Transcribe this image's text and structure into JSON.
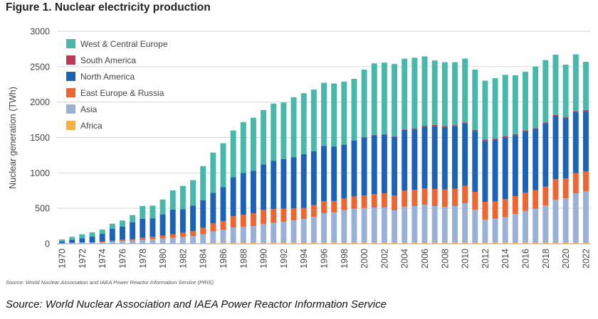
{
  "figure_title": "Figure 1. Nuclear electricity production",
  "small_source": "Source: World Nuclear Association and IAEA Power Reactor Information Service (PRIS)",
  "big_source": "Source: World Nuclear Association and IAEA Power Reactor Information Service",
  "chart_data": {
    "type": "bar",
    "stacked": true,
    "title": "",
    "xlabel": "",
    "ylabel": "Nuclear generation (TWh)",
    "ylim": [
      0,
      3000
    ],
    "yticks": [
      "0",
      "500",
      "1000",
      "1500",
      "2000",
      "2500",
      "3000"
    ],
    "grid": "horizontal",
    "legend_position": "top-left",
    "legend_order": [
      "West & Central Europe",
      "South America",
      "North America",
      "East Europe & Russia",
      "Asia",
      "Africa"
    ],
    "categories": [
      "1970",
      "1971",
      "1972",
      "1973",
      "1974",
      "1975",
      "1976",
      "1977",
      "1978",
      "1979",
      "1980",
      "1981",
      "1982",
      "1983",
      "1984",
      "1985",
      "1986",
      "1987",
      "1988",
      "1989",
      "1990",
      "1991",
      "1992",
      "1993",
      "1994",
      "1995",
      "1996",
      "1997",
      "1998",
      "1999",
      "2000",
      "2001",
      "2002",
      "2003",
      "2004",
      "2005",
      "2006",
      "2007",
      "2008",
      "2009",
      "2010",
      "2011",
      "2012",
      "2013",
      "2014",
      "2015",
      "2016",
      "2017",
      "2018",
      "2019",
      "2020",
      "2021",
      "2022"
    ],
    "x_tick_labels": [
      "1970",
      "1972",
      "1974",
      "1976",
      "1978",
      "1980",
      "1982",
      "1984",
      "1986",
      "1988",
      "1990",
      "1992",
      "1994",
      "1996",
      "1998",
      "2000",
      "2002",
      "2004",
      "2006",
      "2008",
      "2010",
      "2012",
      "2014",
      "2016",
      "2018",
      "2020",
      "2022"
    ],
    "series": [
      {
        "name": "Africa",
        "color": "#f9b042",
        "values": [
          0,
          0,
          0,
          0,
          0,
          0,
          0,
          0,
          0,
          0,
          0,
          0,
          0,
          0,
          0,
          7,
          8,
          9,
          10,
          11,
          8,
          9,
          10,
          9,
          10,
          11,
          12,
          13,
          14,
          13,
          13,
          11,
          12,
          12,
          14,
          12,
          10,
          12,
          12,
          12,
          12,
          12,
          12,
          13,
          14,
          11,
          15,
          15,
          11,
          11,
          11,
          12,
          10
        ]
      },
      {
        "name": "Asia",
        "color": "#99b0d7",
        "values": [
          5,
          10,
          15,
          15,
          22,
          30,
          40,
          44,
          55,
          64,
          74,
          83,
          96,
          108,
          135,
          165,
          185,
          220,
          228,
          238,
          270,
          285,
          300,
          320,
          340,
          370,
          420,
          430,
          460,
          480,
          490,
          500,
          500,
          460,
          510,
          520,
          540,
          520,
          510,
          520,
          560,
          470,
          330,
          340,
          360,
          410,
          450,
          480,
          530,
          610,
          630,
          700,
          730
        ]
      },
      {
        "name": "East Europe & Russia",
        "color": "#ee6531",
        "values": [
          1,
          2,
          3,
          5,
          8,
          12,
          17,
          20,
          28,
          33,
          40,
          50,
          60,
          70,
          90,
          115,
          125,
          160,
          170,
          180,
          200,
          195,
          185,
          170,
          155,
          165,
          170,
          160,
          165,
          175,
          180,
          190,
          200,
          210,
          225,
          230,
          230,
          240,
          245,
          245,
          245,
          250,
          250,
          245,
          255,
          250,
          255,
          260,
          265,
          290,
          280,
          285,
          280
        ]
      },
      {
        "name": "North America",
        "color": "#1c63b7",
        "values": [
          25,
          45,
          60,
          80,
          110,
          170,
          185,
          240,
          270,
          260,
          300,
          350,
          330,
          360,
          390,
          430,
          480,
          550,
          590,
          600,
          640,
          680,
          700,
          720,
          760,
          760,
          780,
          770,
          760,
          790,
          820,
          830,
          830,
          830,
          860,
          850,
          870,
          890,
          880,
          880,
          880,
          860,
          860,
          870,
          870,
          860,
          860,
          860,
          890,
          890,
          850,
          860,
          850
        ]
      },
      {
        "name": "South America",
        "color": "#bd3a57",
        "values": [
          0,
          0,
          0,
          0,
          0,
          0,
          0,
          0,
          0,
          0,
          0,
          0,
          0,
          0,
          0,
          0,
          0,
          0,
          0,
          0,
          0,
          0,
          0,
          0,
          0,
          0,
          0,
          0,
          0,
          0,
          5,
          5,
          5,
          5,
          5,
          14,
          15,
          16,
          16,
          16,
          17,
          16,
          20,
          19,
          16,
          17,
          19,
          17,
          17,
          18,
          17,
          17,
          18
        ]
      },
      {
        "name": "West & Central Europe",
        "color": "#48b8aa",
        "values": [
          30,
          40,
          55,
          60,
          60,
          70,
          85,
          100,
          180,
          180,
          210,
          270,
          330,
          360,
          480,
          570,
          620,
          660,
          720,
          750,
          770,
          810,
          800,
          850,
          860,
          870,
          890,
          890,
          890,
          870,
          950,
          1010,
          1010,
          1020,
          1000,
          1000,
          980,
          910,
          900,
          890,
          900,
          850,
          830,
          850,
          870,
          830,
          830,
          870,
          880,
          850,
          740,
          800,
          680
        ]
      }
    ]
  }
}
